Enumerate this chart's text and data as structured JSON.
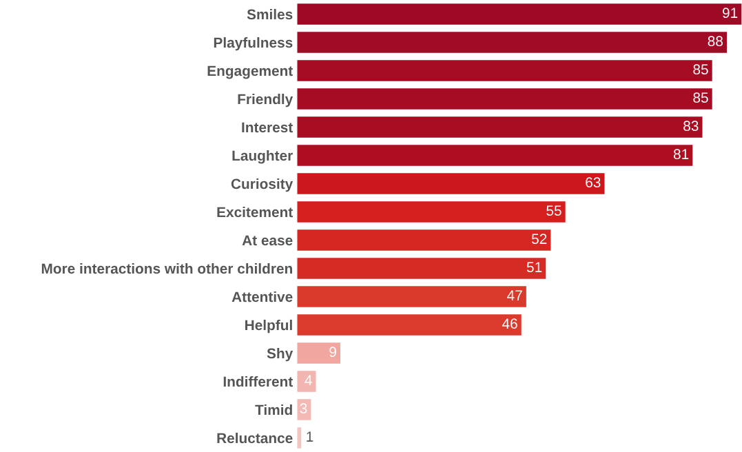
{
  "chart_data": {
    "type": "bar",
    "orientation": "horizontal",
    "categories": [
      "Smiles",
      "Playfulness",
      "Engagement",
      "Friendly",
      "Interest",
      "Laughter",
      "Curiosity",
      "Excitement",
      "At ease",
      "More interactions with other children",
      "Attentive",
      "Helpful",
      "Shy",
      "Indifferent",
      "Timid",
      "Reluctance"
    ],
    "values": [
      91,
      88,
      85,
      85,
      83,
      81,
      63,
      55,
      52,
      51,
      47,
      46,
      9,
      4,
      3,
      1
    ],
    "colors": [
      "#9e0a26",
      "#a20b26",
      "#a50c24",
      "#a60c24",
      "#a90d22",
      "#ae0e20",
      "#cc171c",
      "#d41f1e",
      "#d62622",
      "#d62a25",
      "#da3a2c",
      "#db3b2d",
      "#f2a6a0",
      "#f2b5b0",
      "#f2b9b5",
      "#f2c4c2"
    ],
    "xlim": [
      0,
      91
    ],
    "data_labels": true,
    "tick_labels": "y",
    "grid": false,
    "legend": false
  }
}
